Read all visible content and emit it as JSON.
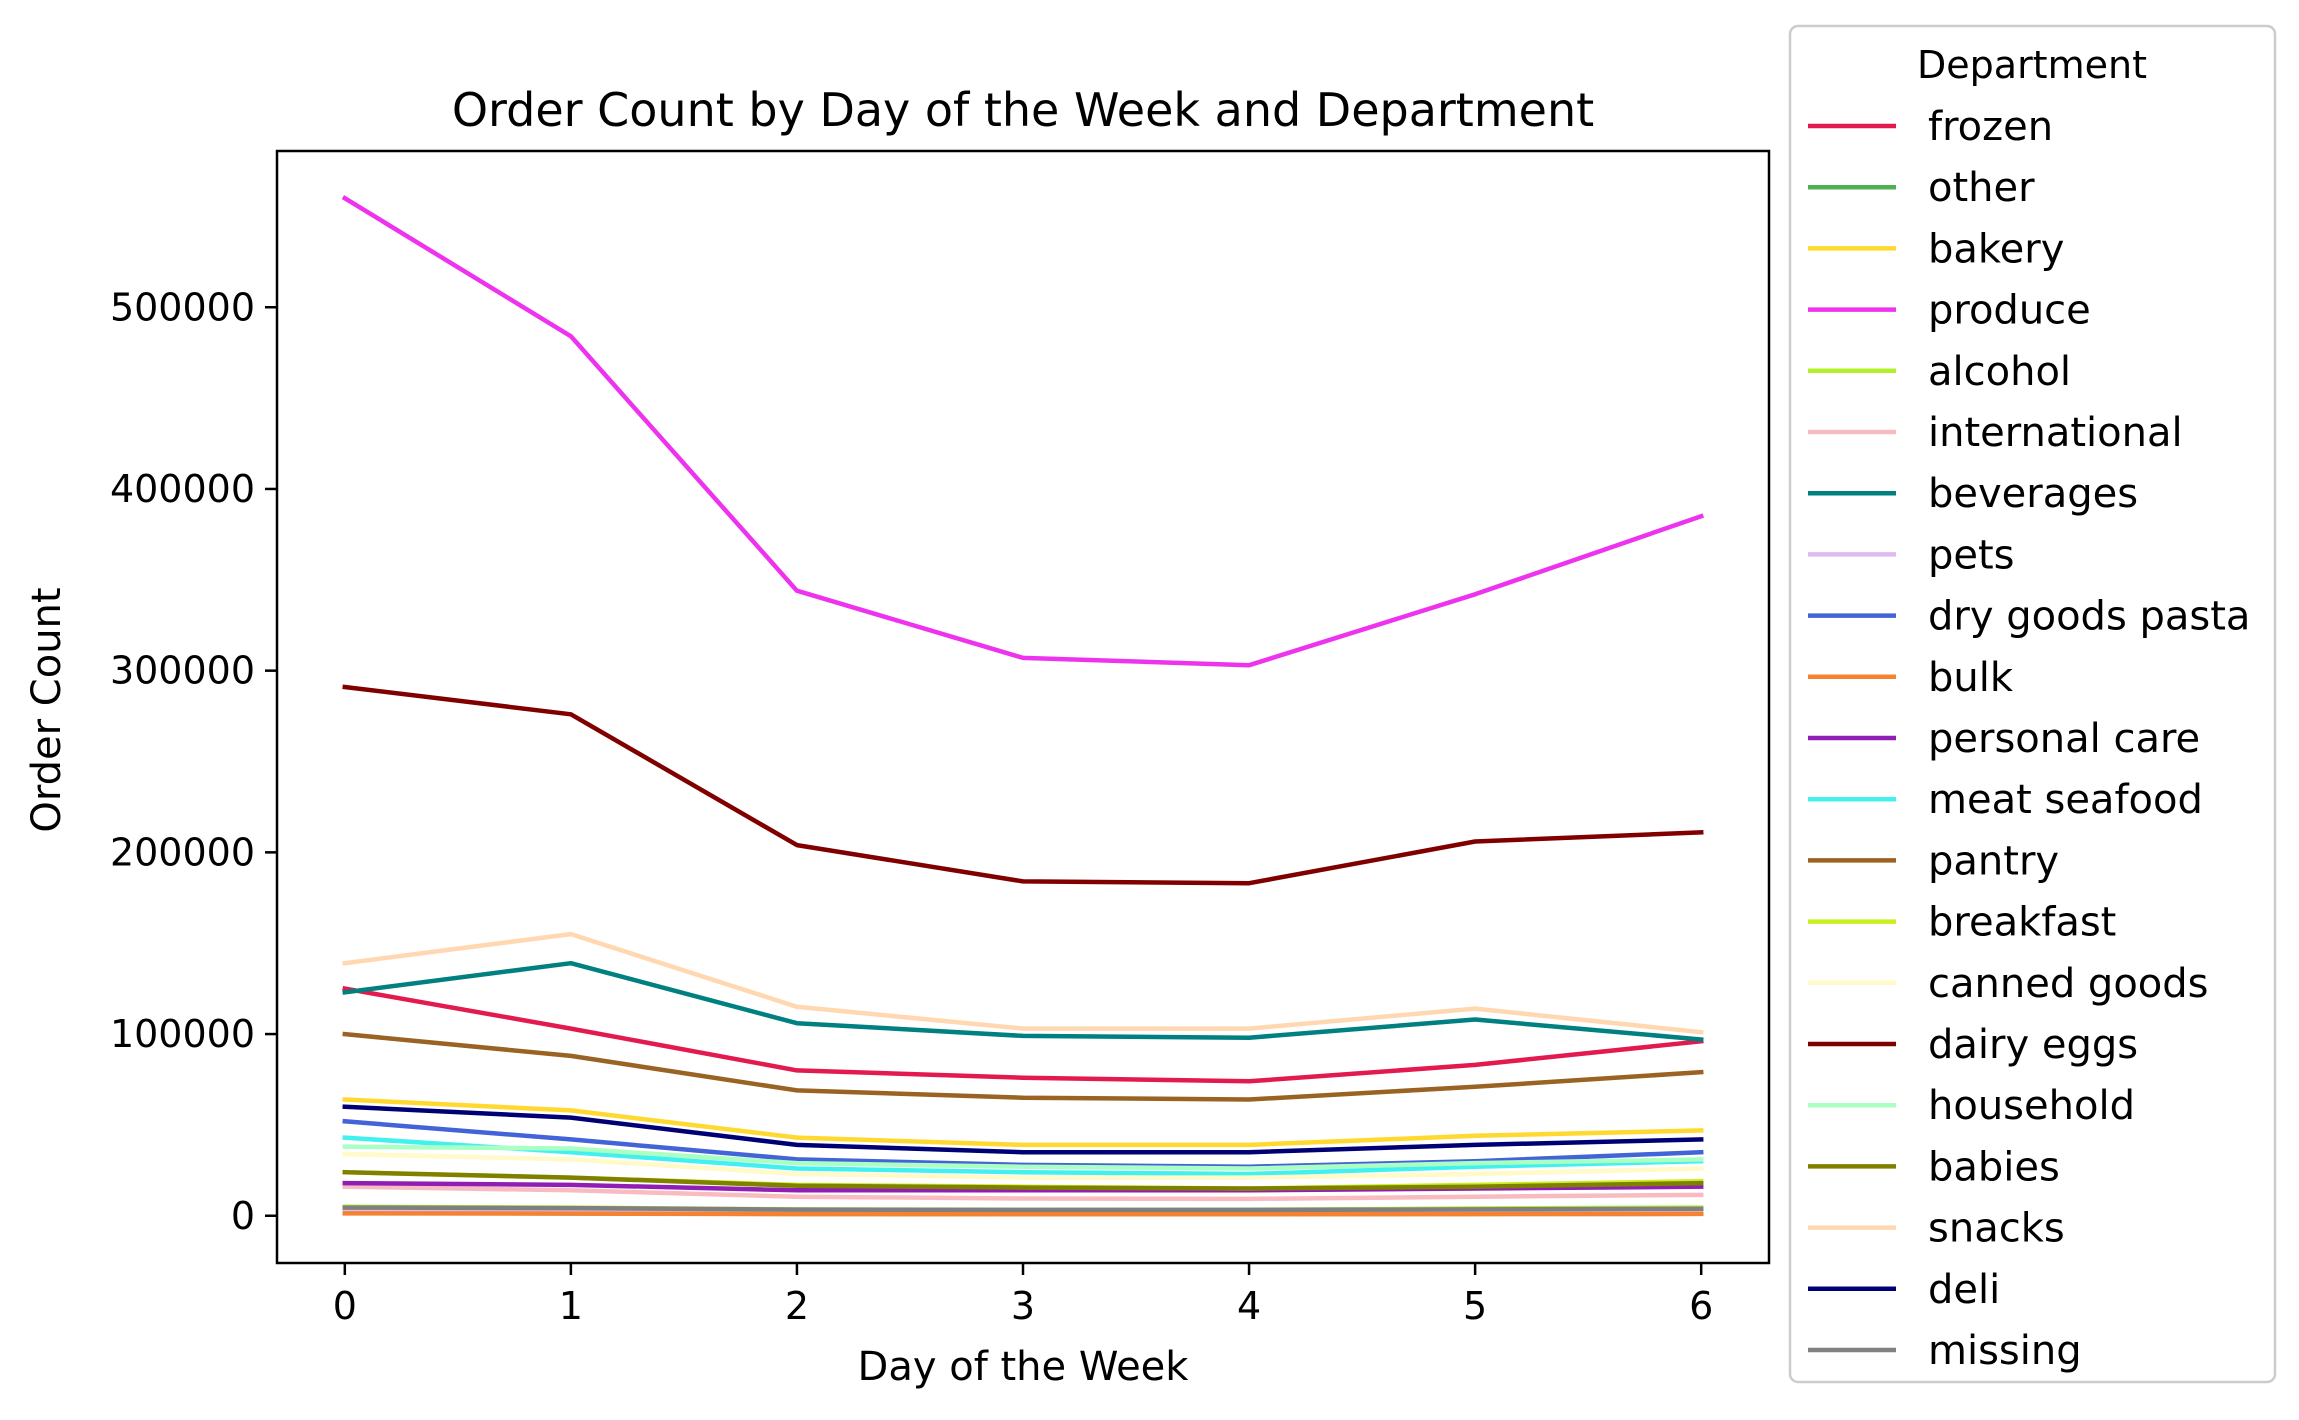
{
  "chart_data": {
    "type": "line",
    "title": "Order Count by Day of the Week and Department",
    "xlabel": "Day of the Week",
    "ylabel": "Order Count",
    "x": [
      0,
      1,
      2,
      3,
      4,
      5,
      6
    ],
    "xlim": [
      -0.3,
      6.3
    ],
    "ylim": [
      -26000,
      586000
    ],
    "yticks": [
      0,
      100000,
      200000,
      300000,
      400000,
      500000
    ],
    "grid": false,
    "legend": {
      "title": "Department",
      "placement": "outside-right"
    },
    "series": [
      {
        "name": "frozen",
        "color": "#e31a4d",
        "values": [
          125000,
          103000,
          80000,
          76000,
          74000,
          83000,
          96000
        ]
      },
      {
        "name": "other",
        "color": "#4caf50",
        "values": [
          1500,
          1300,
          1000,
          900,
          900,
          1000,
          1100
        ]
      },
      {
        "name": "bakery",
        "color": "#ffd92f",
        "values": [
          64000,
          58000,
          43000,
          39000,
          39000,
          44000,
          47000
        ]
      },
      {
        "name": "produce",
        "color": "#ee33ee",
        "values": [
          560000,
          484000,
          344000,
          307000,
          303000,
          342000,
          385000
        ]
      },
      {
        "name": "alcohol",
        "color": "#b2f02c",
        "values": [
          5000,
          4500,
          3500,
          3300,
          3300,
          4000,
          4500
        ]
      },
      {
        "name": "international",
        "color": "#f8bcc0",
        "values": [
          16000,
          14000,
          10500,
          9500,
          9300,
          10500,
          11500
        ]
      },
      {
        "name": "beverages",
        "color": "#008080",
        "values": [
          123000,
          139000,
          106000,
          99000,
          98000,
          108000,
          97000
        ]
      },
      {
        "name": "pets",
        "color": "#e0bbf0",
        "values": [
          3500,
          3200,
          2500,
          2300,
          2300,
          2600,
          2900
        ]
      },
      {
        "name": "dry goods pasta",
        "color": "#4363d8",
        "values": [
          52000,
          42000,
          31000,
          28000,
          27000,
          30000,
          35000
        ]
      },
      {
        "name": "bulk",
        "color": "#f58231",
        "values": [
          1300,
          1200,
          900,
          800,
          800,
          900,
          1000
        ]
      },
      {
        "name": "personal care",
        "color": "#911eb4",
        "values": [
          18000,
          17000,
          14000,
          14000,
          14000,
          15000,
          16000
        ]
      },
      {
        "name": "meat seafood",
        "color": "#42f0f0",
        "values": [
          43000,
          35000,
          26000,
          24000,
          23000,
          27000,
          30000
        ]
      },
      {
        "name": "pantry",
        "color": "#9a6324",
        "values": [
          100000,
          88000,
          69000,
          65000,
          64000,
          71000,
          79000
        ]
      },
      {
        "name": "breakfast",
        "color": "#c8f01e",
        "values": [
          24000,
          21000,
          17000,
          16000,
          15000,
          17000,
          19000
        ]
      },
      {
        "name": "canned goods",
        "color": "#fffac8",
        "values": [
          34000,
          31000,
          23000,
          21000,
          21000,
          23000,
          26000
        ]
      },
      {
        "name": "dairy eggs",
        "color": "#800000",
        "values": [
          291000,
          276000,
          204000,
          184000,
          183000,
          206000,
          211000
        ]
      },
      {
        "name": "household",
        "color": "#aaffc3",
        "values": [
          38000,
          37000,
          29000,
          27000,
          26000,
          29000,
          31000
        ]
      },
      {
        "name": "babies",
        "color": "#808000",
        "values": [
          24000,
          21000,
          16500,
          15500,
          15000,
          16000,
          18000
        ]
      },
      {
        "name": "snacks",
        "color": "#ffd8b1",
        "values": [
          139000,
          155000,
          115000,
          103000,
          103000,
          114000,
          101000
        ]
      },
      {
        "name": "deli",
        "color": "#000075",
        "values": [
          60000,
          54000,
          39000,
          35000,
          35000,
          39000,
          42000
        ]
      },
      {
        "name": "missing",
        "color": "#808080",
        "values": [
          4500,
          4200,
          3400,
          3200,
          3200,
          3500,
          3900
        ]
      }
    ]
  }
}
